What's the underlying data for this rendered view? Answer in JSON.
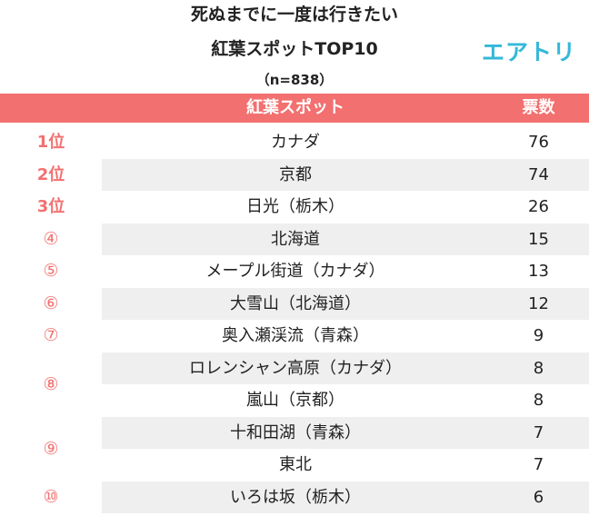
{
  "title_line1": "死ぬまでに一度は行きたい",
  "title_line2": "紅葉スポットTOP10",
  "sample": "（n=838）",
  "logo": "エアトリ",
  "header": {
    "spot": "紅葉スポット",
    "votes": "票数"
  },
  "chart_data": {
    "type": "table",
    "columns": [
      "紅葉スポット",
      "票数"
    ],
    "rank_groups": [
      {
        "label": "1位",
        "rows": 1
      },
      {
        "label": "2位",
        "rows": 1
      },
      {
        "label": "3位",
        "rows": 1
      },
      {
        "label": "④",
        "rows": 1
      },
      {
        "label": "⑤",
        "rows": 1
      },
      {
        "label": "⑥",
        "rows": 1
      },
      {
        "label": "⑦",
        "rows": 1
      },
      {
        "label": "⑧",
        "rows": 2
      },
      {
        "label": "⑨",
        "rows": 2
      },
      {
        "label": "⑩",
        "rows": 1
      }
    ],
    "rows": [
      {
        "spot": "カナダ",
        "votes": 76
      },
      {
        "spot": "京都",
        "votes": 74
      },
      {
        "spot": "日光（栃木）",
        "votes": 26
      },
      {
        "spot": "北海道",
        "votes": 15
      },
      {
        "spot": "メープル街道（カナダ）",
        "votes": 13
      },
      {
        "spot": "大雪山（北海道）",
        "votes": 12
      },
      {
        "spot": "奥入瀬渓流（青森）",
        "votes": 9
      },
      {
        "spot": "ロレンシャン高原（カナダ）",
        "votes": 8
      },
      {
        "spot": "嵐山（京都）",
        "votes": 8
      },
      {
        "spot": "十和田湖（青森）",
        "votes": 7
      },
      {
        "spot": "東北",
        "votes": 7
      },
      {
        "spot": "いろは坂（栃木）",
        "votes": 6
      }
    ]
  }
}
